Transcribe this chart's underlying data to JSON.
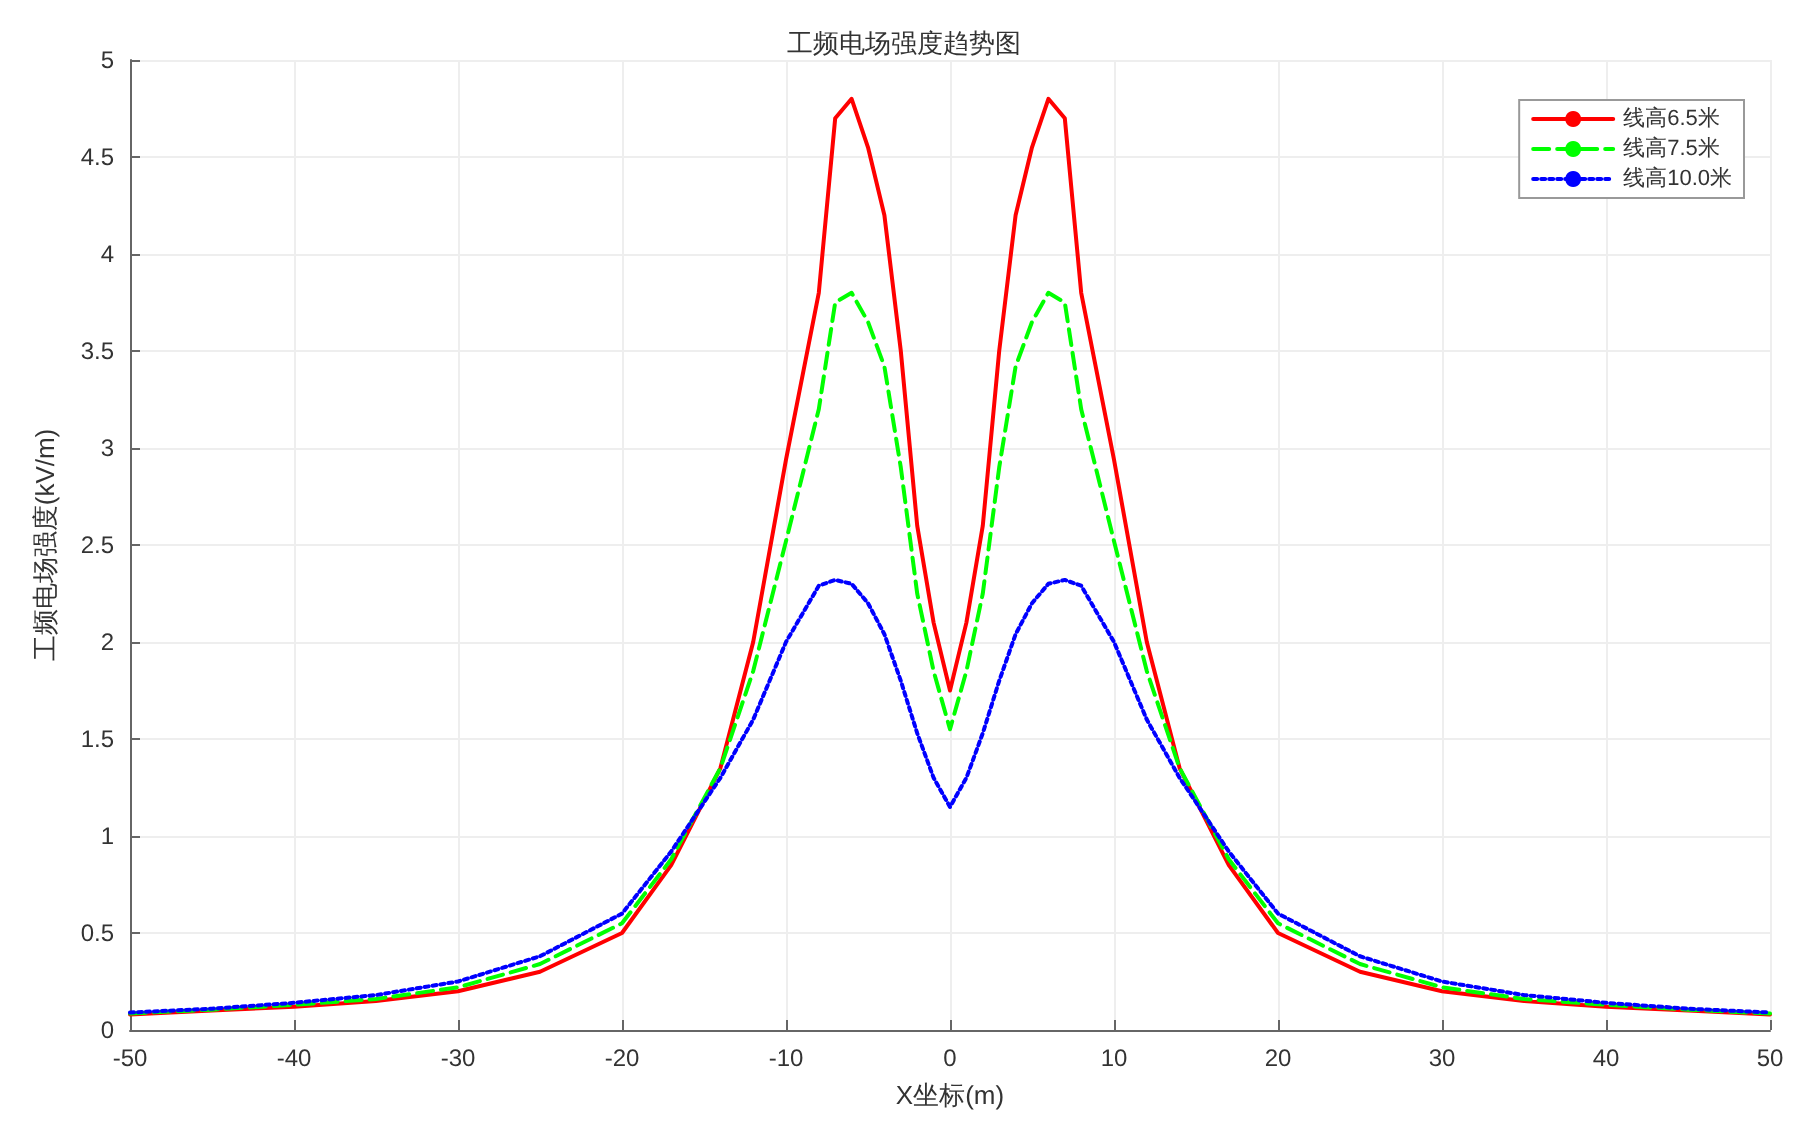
{
  "chart_data": {
    "type": "line",
    "title": "工频电场强度趋势图",
    "xlabel": "X坐标(m)",
    "ylabel": "工频电场强度(kV/m)",
    "x": [
      -50,
      -45,
      -40,
      -35,
      -30,
      -25,
      -20,
      -17,
      -14,
      -12,
      -10,
      -8,
      -7,
      -6,
      -5,
      -4,
      -3,
      -2,
      -1,
      0,
      1,
      2,
      3,
      4,
      5,
      6,
      7,
      8,
      10,
      12,
      14,
      17,
      20,
      25,
      30,
      35,
      40,
      45,
      50
    ],
    "series": [
      {
        "name": "线高6.5米",
        "color": "#ff0000",
        "line_style": "solid",
        "values": [
          0.08,
          0.1,
          0.12,
          0.15,
          0.2,
          0.3,
          0.5,
          0.85,
          1.35,
          2.0,
          2.94,
          3.8,
          4.7,
          4.8,
          4.55,
          4.2,
          3.5,
          2.6,
          2.1,
          1.75,
          2.1,
          2.6,
          3.5,
          4.2,
          4.55,
          4.8,
          4.7,
          3.8,
          2.94,
          2.0,
          1.35,
          0.85,
          0.5,
          0.3,
          0.2,
          0.15,
          0.12,
          0.1,
          0.08
        ]
      },
      {
        "name": "线高7.5米",
        "color": "#00ff00",
        "line_style": "dashed",
        "values": [
          0.085,
          0.105,
          0.13,
          0.16,
          0.22,
          0.34,
          0.55,
          0.88,
          1.35,
          1.85,
          2.52,
          3.2,
          3.75,
          3.8,
          3.65,
          3.42,
          2.9,
          2.25,
          1.85,
          1.55,
          1.85,
          2.25,
          2.9,
          3.42,
          3.65,
          3.8,
          3.75,
          3.2,
          2.52,
          1.85,
          1.35,
          0.88,
          0.55,
          0.34,
          0.22,
          0.16,
          0.13,
          0.105,
          0.085
        ]
      },
      {
        "name": "线高10.0米",
        "color": "#0000ff",
        "line_style": "dotted",
        "values": [
          0.09,
          0.11,
          0.14,
          0.18,
          0.25,
          0.38,
          0.6,
          0.92,
          1.3,
          1.6,
          2.0,
          2.29,
          2.32,
          2.3,
          2.2,
          2.04,
          1.8,
          1.53,
          1.3,
          1.15,
          1.3,
          1.53,
          1.8,
          2.04,
          2.2,
          2.3,
          2.32,
          2.29,
          2.0,
          1.6,
          1.3,
          0.92,
          0.6,
          0.38,
          0.25,
          0.18,
          0.14,
          0.11,
          0.09
        ]
      }
    ],
    "xlim": [
      -50,
      50
    ],
    "xticks": [
      -50,
      -40,
      -30,
      -20,
      -10,
      0,
      10,
      20,
      30,
      40,
      50
    ],
    "ylim": [
      0,
      5
    ],
    "yticks": [
      0,
      0.5,
      1,
      1.5,
      2,
      2.5,
      3,
      3.5,
      4,
      4.5,
      5
    ],
    "grid": true,
    "legend": "top right",
    "marker": "none"
  }
}
